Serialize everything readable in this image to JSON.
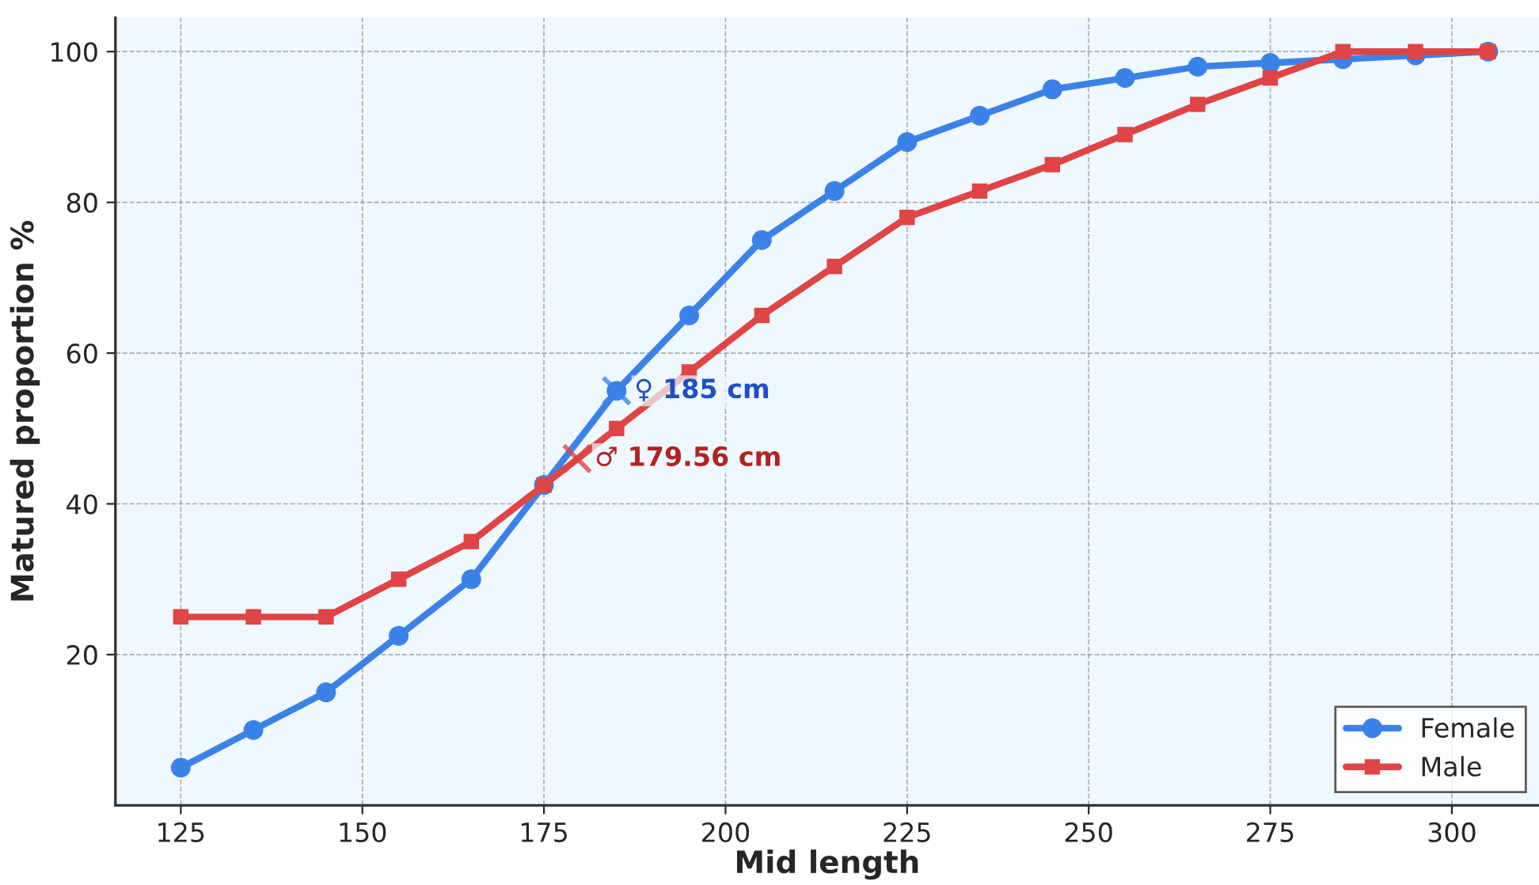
{
  "chart_data": {
    "type": "line",
    "xlabel": "Mid length",
    "ylabel": "Matured proportion %",
    "x": [
      125,
      135,
      145,
      155,
      165,
      175,
      185,
      195,
      205,
      215,
      225,
      235,
      245,
      255,
      265,
      275,
      285,
      295,
      305
    ],
    "series": [
      {
        "name": "Female",
        "color": "#3b82e8",
        "marker": "circle",
        "values": [
          5,
          10,
          15,
          22.5,
          30,
          42.5,
          55,
          65,
          75,
          81.5,
          88,
          91.5,
          95,
          96.5,
          98,
          98.5,
          99,
          99.5,
          100
        ]
      },
      {
        "name": "Male",
        "color": "#e04444",
        "marker": "square",
        "values": [
          25,
          25,
          25,
          30,
          35,
          42.5,
          50,
          57.5,
          65,
          71.5,
          78,
          81.5,
          85,
          89,
          93,
          96.5,
          100,
          100,
          100
        ]
      }
    ],
    "annotations": [
      {
        "text": "♀ 185 cm",
        "x": 185,
        "y": 55
      },
      {
        "text": "♂ 179.56 cm",
        "x": 179.56,
        "y": 46
      }
    ],
    "xlim": [
      116,
      312
    ],
    "ylim": [
      0,
      104.5
    ],
    "xticks": [
      125,
      150,
      175,
      200,
      225,
      250,
      275,
      300
    ],
    "yticks": [
      20,
      40,
      60,
      80,
      100
    ],
    "grid": true,
    "legend": "bottom right",
    "line_style": "solid"
  }
}
